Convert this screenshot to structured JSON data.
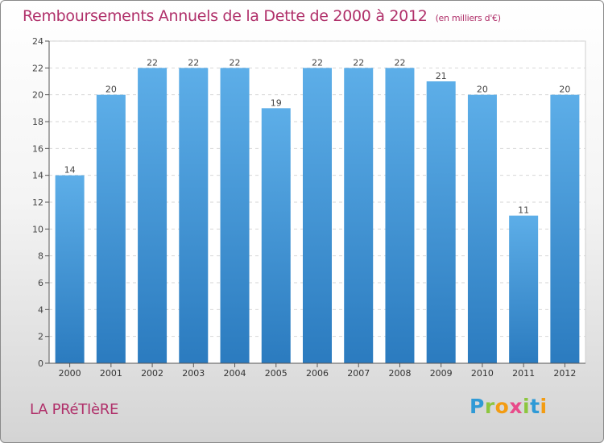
{
  "title": "Remboursements Annuels de la Dette de 2000 à 2012",
  "unit": "(en milliers d'€)",
  "place": "LA PRéTIèRE",
  "brand": {
    "letters": [
      "P",
      "r",
      "o",
      "x",
      "i",
      "t",
      "i"
    ],
    "colors": [
      "#2f9ad6",
      "#8dc63f",
      "#f39c12",
      "#e84b8a",
      "#8dc63f",
      "#2f9ad6",
      "#f39c12"
    ]
  },
  "colors": {
    "bar": "#3a8fd4",
    "bar_light": "#5daee8",
    "text": "#b0306a"
  },
  "chart_data": {
    "type": "bar",
    "categories": [
      "2000",
      "2001",
      "2002",
      "2003",
      "2004",
      "2005",
      "2006",
      "2007",
      "2008",
      "2009",
      "2010",
      "2011",
      "2012"
    ],
    "values": [
      14,
      20,
      22,
      22,
      22,
      19,
      22,
      22,
      22,
      21,
      20,
      11,
      20
    ],
    "ylim": [
      0,
      24
    ],
    "yticks": [
      0,
      2,
      4,
      6,
      8,
      10,
      12,
      14,
      16,
      18,
      20,
      22,
      24
    ],
    "grid": true
  }
}
